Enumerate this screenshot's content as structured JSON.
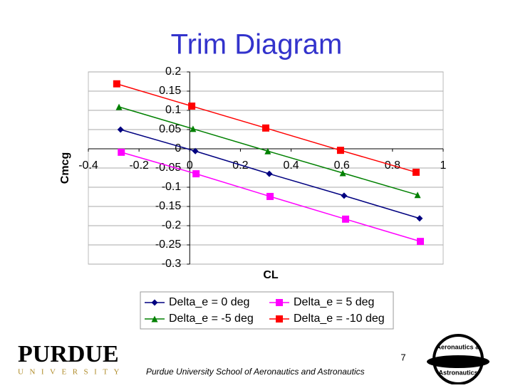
{
  "chart_data": {
    "type": "line",
    "title": "Trim Diagram",
    "xlabel": "CL",
    "ylabel": "Cmcg",
    "xlim": [
      -0.4,
      1
    ],
    "xticks": [
      -0.4,
      -0.2,
      0,
      0.2,
      0.4,
      0.6,
      0.8,
      1
    ],
    "ylim": [
      -0.3,
      0.2
    ],
    "yticks": [
      0.2,
      0.15,
      0.1,
      0.05,
      0,
      -0.05,
      -0.1,
      -0.15,
      -0.2,
      -0.25,
      -0.3
    ],
    "grid": true,
    "legend": "bottom",
    "series": [
      {
        "name": "Delta_e = 0 deg",
        "color": "#000080",
        "marker": "diamond",
        "x": [
          -0.273,
          0.022,
          0.314,
          0.609,
          0.907
        ],
        "values": [
          0.05,
          -0.006,
          -0.065,
          -0.122,
          -0.181
        ]
      },
      {
        "name": "Delta_e = 5 deg",
        "color": "#ff00ff",
        "marker": "square",
        "x": [
          -0.27,
          0.025,
          0.317,
          0.615,
          0.91
        ],
        "values": [
          -0.009,
          -0.065,
          -0.124,
          -0.183,
          -0.241
        ]
      },
      {
        "name": "Delta_e = -5 deg",
        "color": "#008000",
        "marker": "triangle",
        "x": [
          -0.279,
          0.013,
          0.308,
          0.604,
          0.899
        ],
        "values": [
          0.109,
          0.052,
          -0.006,
          -0.063,
          -0.12
        ]
      },
      {
        "name": "Delta_e = -10 deg",
        "color": "#ff0000",
        "marker": "square",
        "x": [
          -0.288,
          0.008,
          0.3,
          0.595,
          0.893
        ],
        "values": [
          0.169,
          0.111,
          0.054,
          -0.004,
          -0.061
        ]
      }
    ]
  },
  "logo": {
    "name": "PURDUE",
    "subtitle": "UNIVERSITY"
  },
  "footer": "Purdue University School of Aeronautics and Astronautics",
  "page_number": "7",
  "badge": {
    "top": "Aeronautics &",
    "bottom": "Astronautics"
  }
}
